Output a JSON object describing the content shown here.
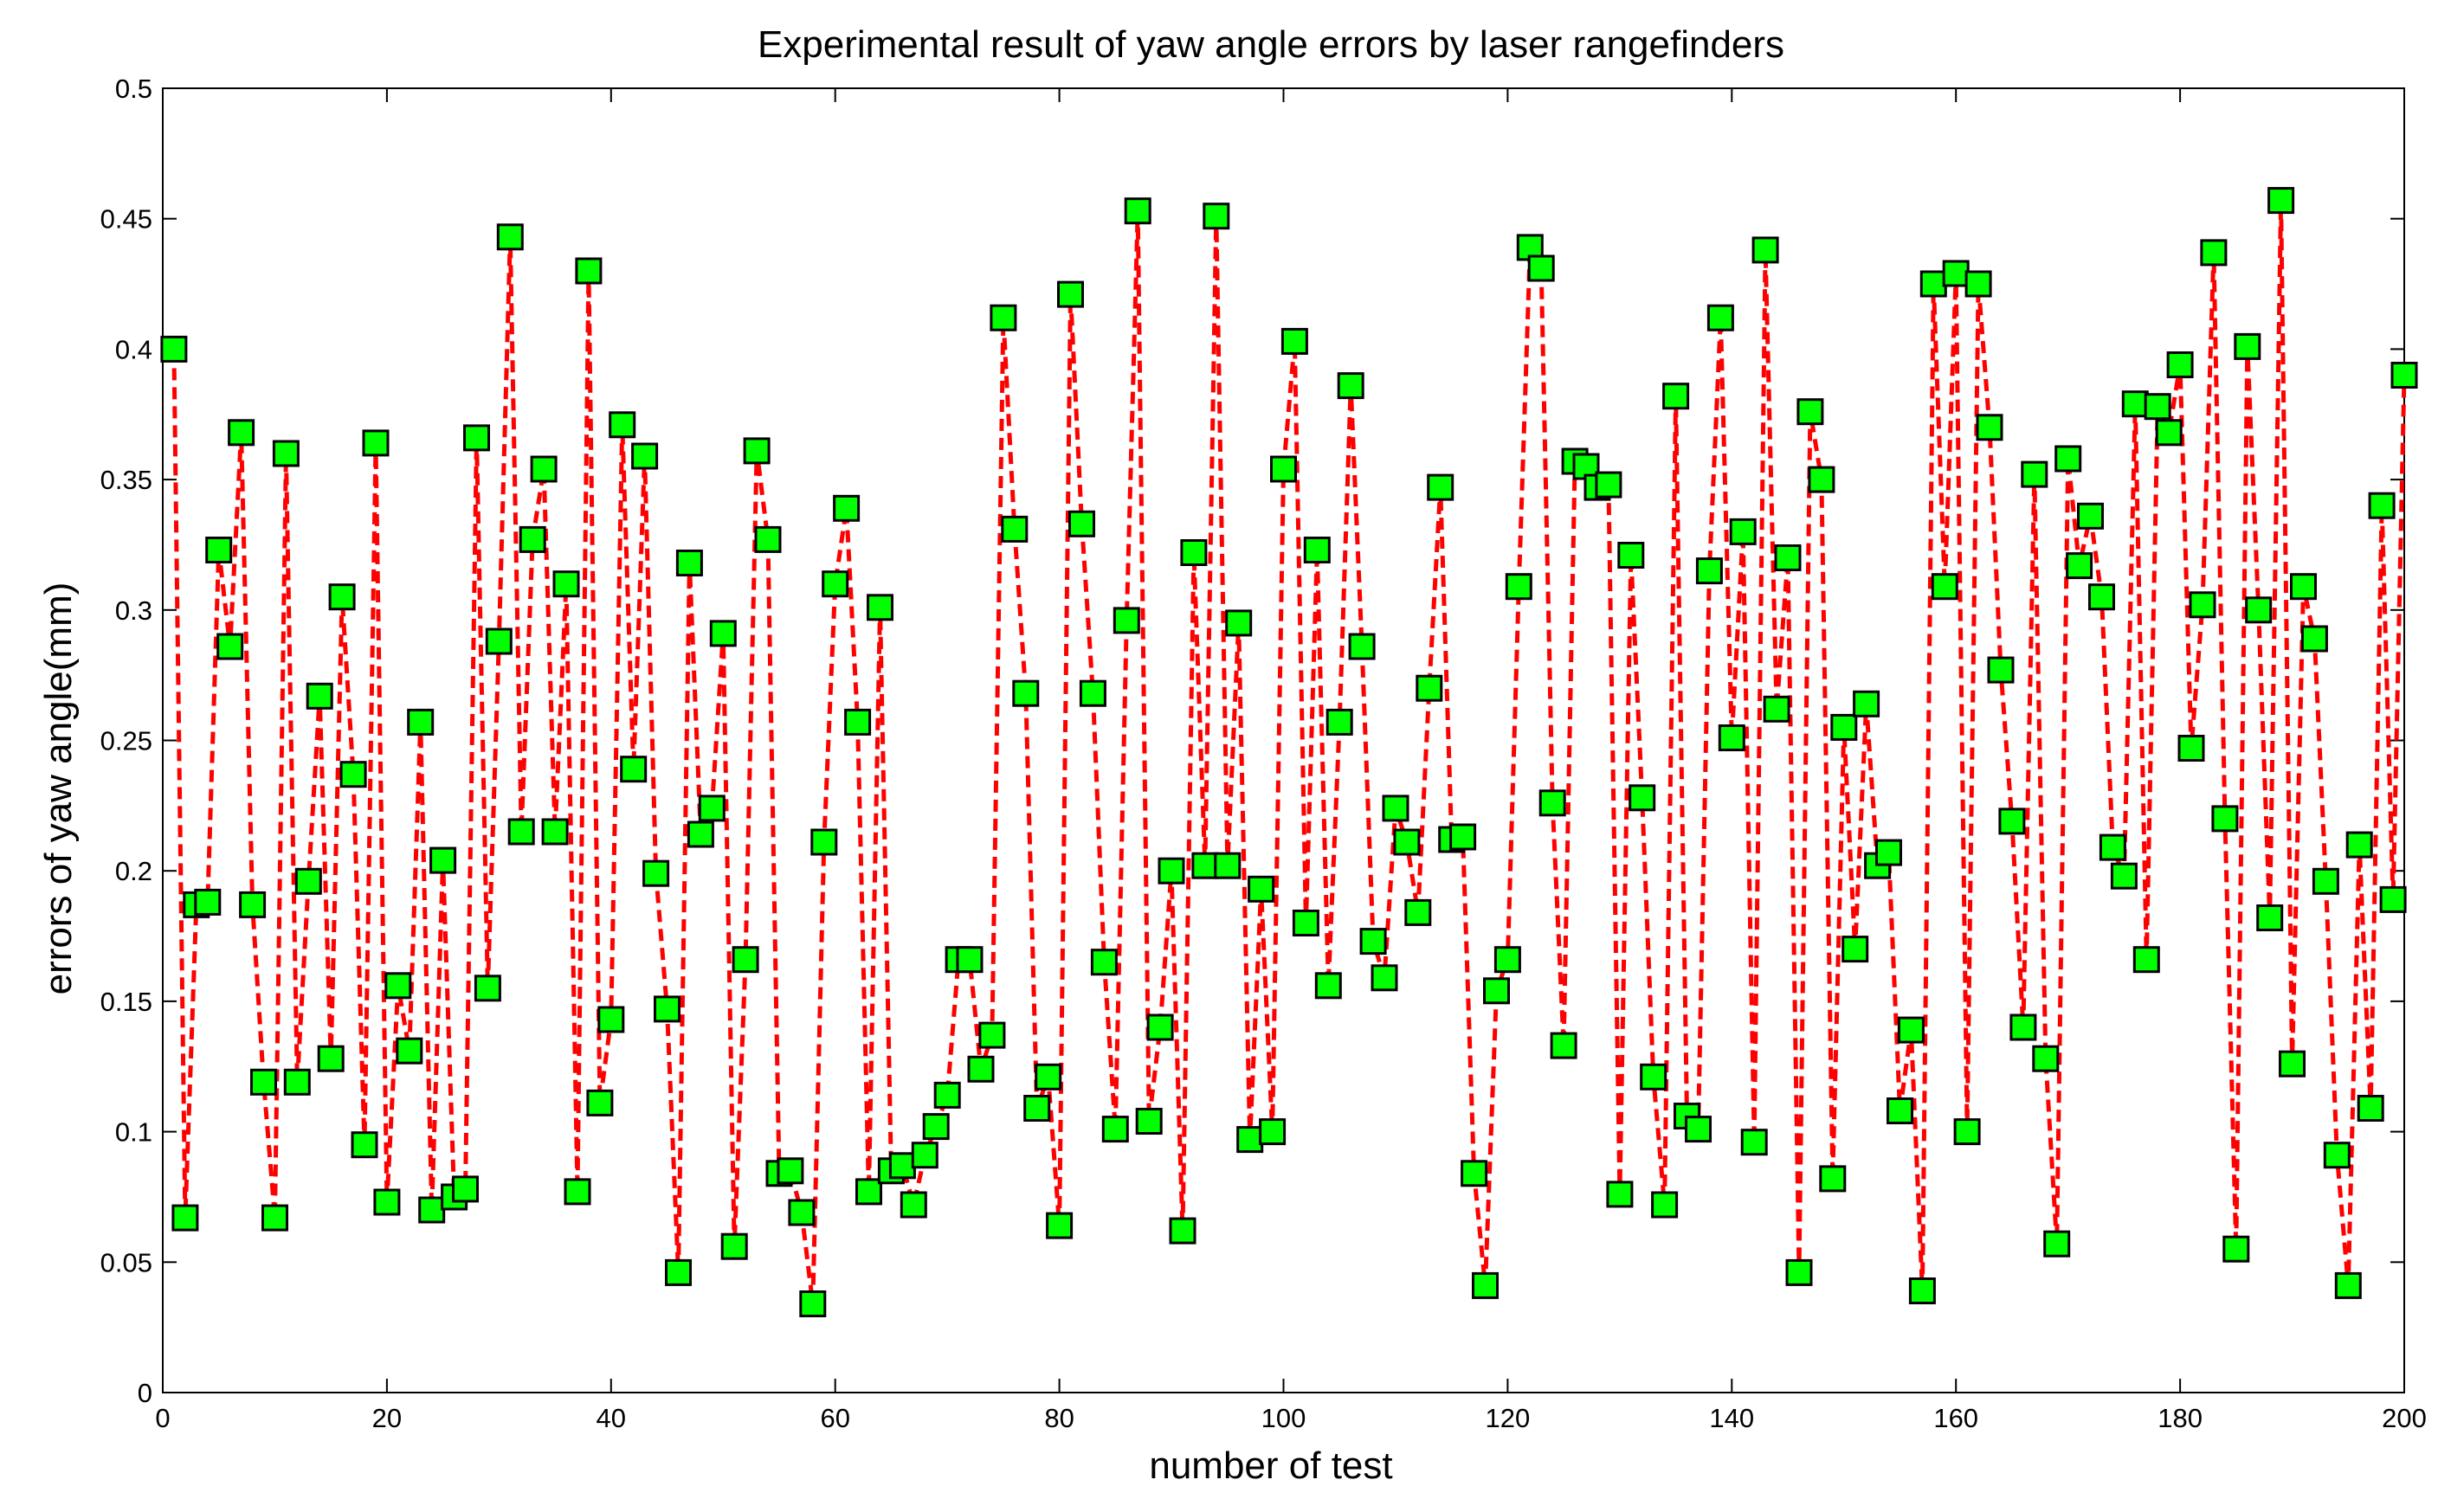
{
  "chart_data": {
    "type": "line",
    "title": "Experimental  result of yaw angle errors by laser rangefinders",
    "xlabel": "number of test",
    "ylabel": "errors of yaw angle(mm)",
    "xlim": [
      0,
      200
    ],
    "ylim": [
      0,
      0.5
    ],
    "xticks": [
      0,
      20,
      40,
      60,
      80,
      100,
      120,
      140,
      160,
      180,
      200
    ],
    "yticks": [
      0,
      0.05,
      0.1,
      0.15,
      0.2,
      0.25,
      0.3,
      0.35,
      0.4,
      0.45,
      0.5
    ],
    "xtick_labels": [
      "0",
      "20",
      "40",
      "60",
      "80",
      "100",
      "120",
      "140",
      "160",
      "180",
      "200"
    ],
    "ytick_labels": [
      "0",
      "0.05",
      "0.1",
      "0.15",
      "0.2",
      "0.25",
      "0.3",
      "0.35",
      "0.4",
      "0.45",
      "0.5"
    ],
    "grid": false,
    "line_color": "#ff0000",
    "line_style": "dashed",
    "marker": "square",
    "marker_face_color": "#00ff00",
    "marker_edge_color": "#000000",
    "series": [
      {
        "x": [
          1,
          2,
          3,
          4,
          5,
          6,
          7,
          8,
          9,
          10,
          11,
          12,
          13,
          14,
          15,
          16,
          17,
          18,
          19,
          20,
          21,
          22,
          23,
          24,
          25,
          26,
          27,
          28,
          29,
          30,
          31,
          32,
          33,
          34,
          35,
          36,
          37,
          38,
          39,
          40,
          41,
          42,
          43,
          44,
          45,
          46,
          47,
          48,
          49,
          50,
          51,
          52,
          53,
          54,
          55,
          56,
          57,
          58,
          59,
          60,
          61,
          62,
          63,
          64,
          65,
          66,
          67,
          68,
          69,
          70,
          71,
          72,
          73,
          74,
          75,
          76,
          77,
          78,
          79,
          80,
          81,
          82,
          83,
          84,
          85,
          86,
          87,
          88,
          89,
          90,
          91,
          92,
          93,
          94,
          95,
          96,
          97,
          98,
          99,
          100,
          101,
          102,
          103,
          104,
          105,
          106,
          107,
          108,
          109,
          110,
          111,
          112,
          113,
          114,
          115,
          116,
          117,
          118,
          119,
          120,
          121,
          122,
          123,
          124,
          125,
          126,
          127,
          128,
          129,
          130,
          131,
          132,
          133,
          134,
          135,
          136,
          137,
          138,
          139,
          140,
          141,
          142,
          143,
          144,
          145,
          146,
          147,
          148,
          149,
          150,
          151,
          152,
          153,
          154,
          155,
          156,
          157,
          158,
          159,
          160,
          161,
          162,
          163,
          164,
          165,
          166,
          167,
          168,
          169,
          170,
          171,
          172,
          173,
          174,
          175,
          176,
          177,
          178,
          179,
          180,
          181,
          182,
          183,
          184,
          185,
          186,
          187,
          188,
          189,
          190,
          191,
          192,
          193,
          194,
          195,
          196,
          197,
          198,
          199,
          200
        ],
        "y": [
          0.4,
          0.067,
          0.187,
          0.188,
          0.323,
          0.286,
          0.368,
          0.187,
          0.119,
          0.067,
          0.36,
          0.119,
          0.196,
          0.267,
          0.128,
          0.305,
          0.237,
          0.095,
          0.364,
          0.073,
          0.156,
          0.131,
          0.257,
          0.07,
          0.204,
          0.075,
          0.078,
          0.366,
          0.155,
          0.288,
          0.443,
          0.215,
          0.327,
          0.354,
          0.215,
          0.31,
          0.077,
          0.43,
          0.111,
          0.143,
          0.371,
          0.239,
          0.359,
          0.199,
          0.147,
          0.046,
          0.318,
          0.214,
          0.224,
          0.291,
          0.056,
          0.166,
          0.361,
          0.327,
          0.084,
          0.085,
          0.069,
          0.034,
          0.211,
          0.31,
          0.339,
          0.257,
          0.077,
          0.301,
          0.085,
          0.087,
          0.072,
          0.091,
          0.102,
          0.114,
          0.166,
          0.166,
          0.124,
          0.137,
          0.412,
          0.331,
          0.268,
          0.109,
          0.121,
          0.064,
          0.421,
          0.333,
          0.268,
          0.165,
          0.101,
          0.296,
          0.453,
          0.104,
          0.14,
          0.2,
          0.062,
          0.322,
          0.202,
          0.451,
          0.202,
          0.295,
          0.097,
          0.193,
          0.1,
          0.354,
          0.403,
          0.18,
          0.323,
          0.156,
          0.257,
          0.386,
          0.286,
          0.173,
          0.159,
          0.224,
          0.211,
          0.184,
          0.27,
          0.347,
          0.212,
          0.213,
          0.084,
          0.041,
          0.154,
          0.166,
          0.309,
          0.439,
          0.431,
          0.226,
          0.133,
          0.357,
          0.355,
          0.347,
          0.348,
          0.076,
          0.321,
          0.228,
          0.121,
          0.072,
          0.382,
          0.106,
          0.101,
          0.315,
          0.412,
          0.251,
          0.33,
          0.096,
          0.438,
          0.262,
          0.32,
          0.046,
          0.376,
          0.35,
          0.082,
          0.255,
          0.17,
          0.264,
          0.202,
          0.207,
          0.108,
          0.139,
          0.039,
          0.425,
          0.309,
          0.429,
          0.1,
          0.425,
          0.37,
          0.277,
          0.219,
          0.14,
          0.352,
          0.128,
          0.057,
          0.358,
          0.317,
          0.336,
          0.305,
          0.209,
          0.198,
          0.379,
          0.166,
          0.378,
          0.368,
          0.394,
          0.247,
          0.302,
          0.437,
          0.22,
          0.055,
          0.401,
          0.3,
          0.182,
          0.457,
          0.126,
          0.309,
          0.289,
          0.196,
          0.091,
          0.041,
          0.21,
          0.109,
          0.34,
          0.189,
          0.39
        ]
      }
    ]
  }
}
